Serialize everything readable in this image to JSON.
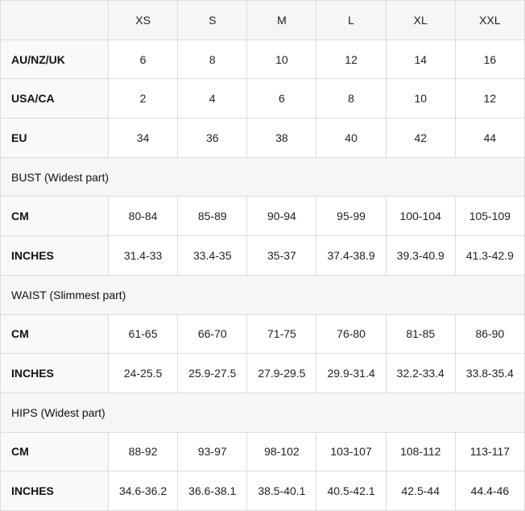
{
  "table": {
    "sizes": [
      "XS",
      "S",
      "M",
      "L",
      "XL",
      "XXL"
    ],
    "rows": [
      {
        "label": "AU/NZ/UK",
        "cells": [
          "6",
          "8",
          "10",
          "12",
          "14",
          "16"
        ]
      },
      {
        "label": "USA/CA",
        "cells": [
          "2",
          "4",
          "6",
          "8",
          "10",
          "12"
        ]
      },
      {
        "label": "EU",
        "cells": [
          "34",
          "36",
          "38",
          "40",
          "42",
          "44"
        ]
      },
      {
        "section": "BUST (Widest part)"
      },
      {
        "label": "CM",
        "cells": [
          "80-84",
          "85-89",
          "90-94",
          "95-99",
          "100-104",
          "105-109"
        ]
      },
      {
        "label": "INCHES",
        "cells": [
          "31.4-33",
          "33.4-35",
          "35-37",
          "37.4-38.9",
          "39.3-40.9",
          "41.3-42.9"
        ]
      },
      {
        "section": "WAIST (Slimmest part)"
      },
      {
        "label": "CM",
        "cells": [
          "61-65",
          "66-70",
          "71-75",
          "76-80",
          "81-85",
          "86-90"
        ]
      },
      {
        "label": "INCHES",
        "cells": [
          "24-25.5",
          "25.9-27.5",
          "27.9-29.5",
          "29.9-31.4",
          "32.2-33.4",
          "33.8-35.4"
        ]
      },
      {
        "section": "HIPS (Widest part)"
      },
      {
        "label": "CM",
        "cells": [
          "88-92",
          "93-97",
          "98-102",
          "103-107",
          "108-112",
          "113-117"
        ]
      },
      {
        "label": "INCHES",
        "cells": [
          "34.6-36.2",
          "36.6-38.1",
          "38.5-40.1",
          "40.5-42.1",
          "42.5-44",
          "44.4-46"
        ]
      }
    ]
  }
}
